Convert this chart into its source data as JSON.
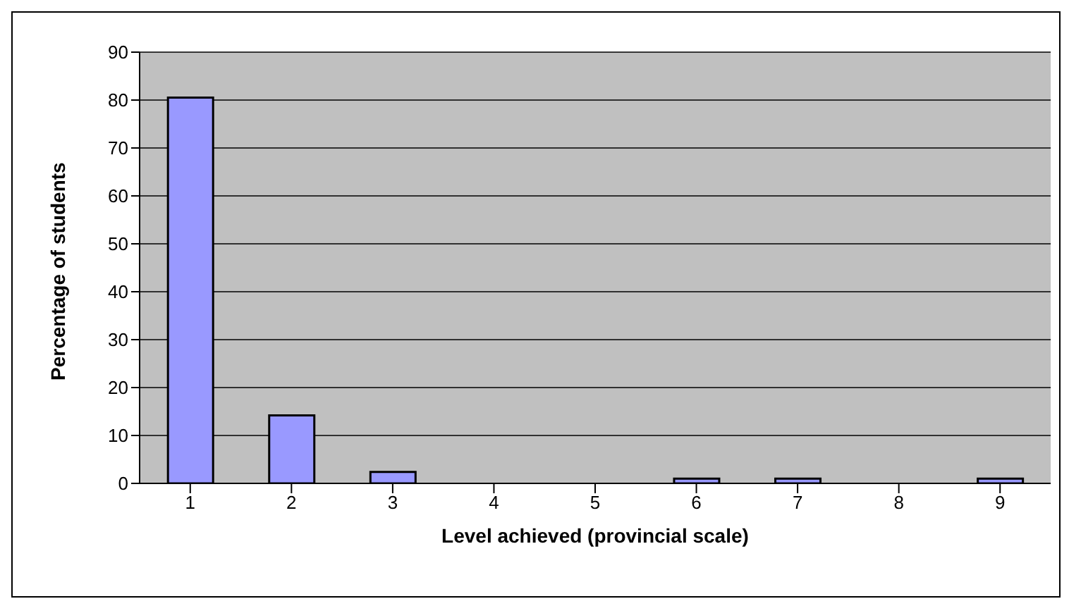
{
  "chart_data": {
    "type": "bar",
    "xlabel": "Level achieved (provincial scale)",
    "ylabel": "Percentage of students",
    "categories": [
      "1",
      "2",
      "3",
      "4",
      "5",
      "6",
      "7",
      "8",
      "9"
    ],
    "series": [
      {
        "color": "#9999ff",
        "values": [
          80.5,
          14.2,
          2.4,
          0,
          0,
          1,
          1,
          0,
          1
        ]
      }
    ],
    "ylim": [
      0,
      90
    ],
    "yticks": [
      0,
      10,
      20,
      30,
      40,
      50,
      60,
      70,
      80,
      90
    ],
    "grid": "y",
    "legend": false
  }
}
